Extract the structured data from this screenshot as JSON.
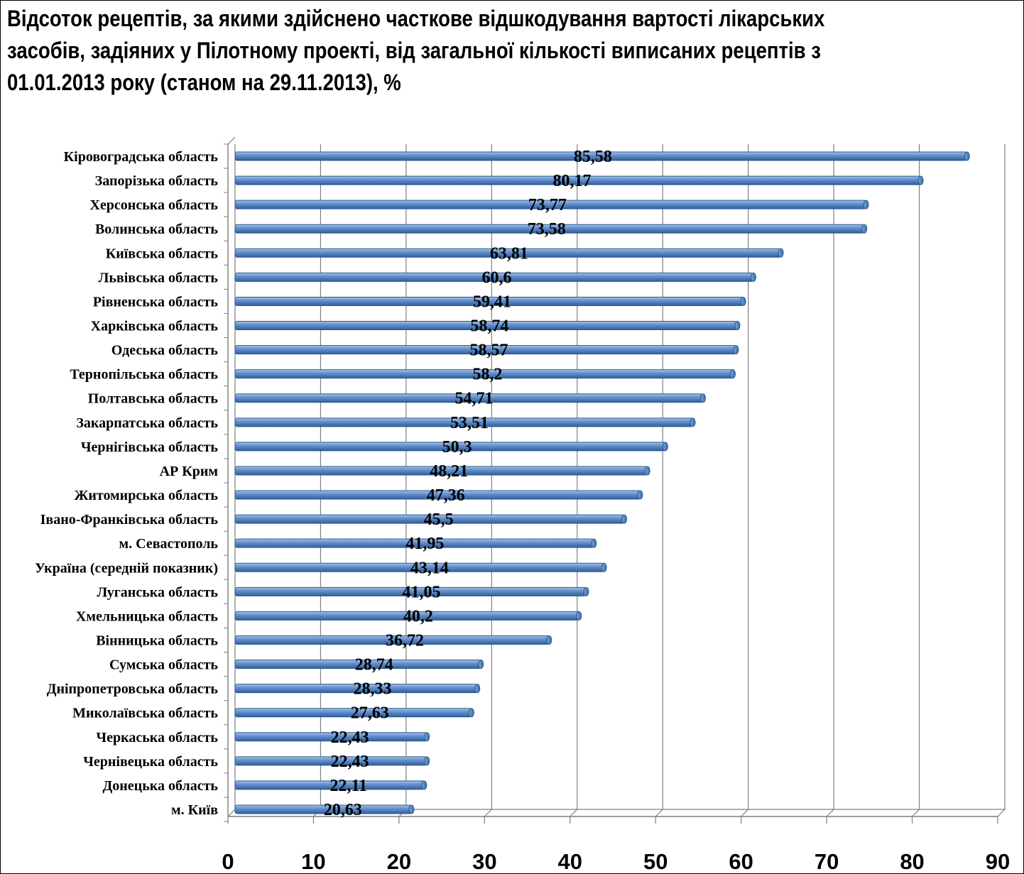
{
  "chart_data": {
    "type": "bar",
    "orientation": "horizontal",
    "title": "Відсоток рецептів, за якими здійснено часткове відшкодування вартості лікарських засобів, задіяних у Пілотному проекті, від загальної кількості виписаних рецептів з 01.01.2013 року (станом на 29.11.2013), %",
    "categories": [
      "Кіровоградська область",
      "Запорізька область",
      "Херсонська область",
      "Волинська область",
      "Київська область",
      "Львівська область",
      "Рівненська область",
      "Харківська область",
      "Одеська область",
      "Тернопільська область",
      "Полтавська область",
      "Закарпатська область",
      "Чернігівська область",
      "АР Крим",
      "Житомирська область",
      "Івано-Франківська область",
      "м. Севастополь",
      "Україна (середній показник)",
      "Луганська область",
      "Хмельницька область",
      "Вінницька область",
      "Сумська область",
      "Дніпропетровська область",
      "Миколаївська область",
      "Черкаська область",
      "Чернівецька область",
      "Донецька область",
      "м. Київ"
    ],
    "values": [
      85.58,
      80.17,
      73.77,
      73.58,
      63.81,
      60.6,
      59.41,
      58.74,
      58.57,
      58.2,
      54.71,
      53.51,
      50.3,
      48.21,
      47.36,
      45.5,
      41.95,
      43.14,
      41.05,
      40.2,
      36.72,
      28.74,
      28.33,
      27.63,
      22.43,
      22.43,
      22.11,
      20.63
    ],
    "value_labels": [
      "85,58",
      "80,17",
      "73,77",
      "73,58",
      "63,81",
      "60,6",
      "59,41",
      "58,74",
      "58,57",
      "58,2",
      "54,71",
      "53,51",
      "50,3",
      "48,21",
      "47,36",
      "45,5",
      "41,95",
      "43,14",
      "41,05",
      "40,2",
      "36,72",
      "28,74",
      "28,33",
      "27,63",
      "22,43",
      "22,43",
      "22,11",
      "20,63"
    ],
    "x_ticks": [
      "0",
      "10",
      "20",
      "30",
      "40",
      "50",
      "60",
      "70",
      "80",
      "90"
    ],
    "xlim": [
      0,
      90
    ],
    "grid": "vertical",
    "bar_color": "#4f81bd",
    "bar_edge_color": "#2a5a92"
  }
}
